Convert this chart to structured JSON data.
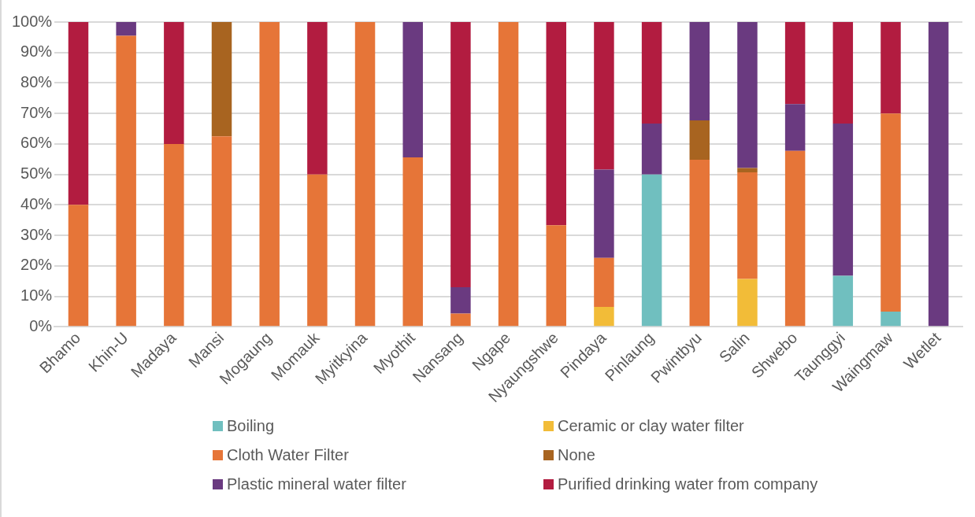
{
  "chart_data": {
    "type": "bar",
    "stacked": true,
    "grid": "y",
    "legend": "bottom",
    "categories": [
      "Bhamo",
      "Khin-U",
      "Madaya",
      "Mansi",
      "Mogaung",
      "Momauk",
      "Myitkyina",
      "Myothit",
      "Nansang",
      "Ngape",
      "Nyaungshwe",
      "Pindaya",
      "Pinlaung",
      "Pwintbyu",
      "Salin",
      "Shwebo",
      "Taunggyi",
      "Waingmaw",
      "Wetlet"
    ],
    "ylim": [
      0,
      100
    ],
    "yticks": [
      {
        "value": 0,
        "label": "0%"
      },
      {
        "value": 10,
        "label": "10%"
      },
      {
        "value": 20,
        "label": "20%"
      },
      {
        "value": 30,
        "label": "30%"
      },
      {
        "value": 40,
        "label": "40%"
      },
      {
        "value": 50,
        "label": "50%"
      },
      {
        "value": 60,
        "label": "60%"
      },
      {
        "value": 70,
        "label": "70%"
      },
      {
        "value": 80,
        "label": "80%"
      },
      {
        "value": 90,
        "label": "90%"
      },
      {
        "value": 100,
        "label": "100%"
      }
    ],
    "series": [
      {
        "name": "Boiling",
        "color": "#70bfbf",
        "values": [
          0,
          0,
          0,
          0,
          0,
          0,
          0,
          0,
          0,
          0,
          0,
          0,
          50,
          0,
          0,
          0,
          16.7,
          5,
          0
        ]
      },
      {
        "name": "Ceramic or clay water filter",
        "color": "#f2bc38",
        "values": [
          0,
          0,
          0,
          0,
          0,
          0,
          0,
          0,
          0,
          0,
          0,
          6.5,
          0,
          0,
          15.7,
          0,
          0,
          0,
          0
        ]
      },
      {
        "name": "Cloth Water Filter",
        "color": "#e67538",
        "values": [
          40,
          95.5,
          60,
          62.5,
          100,
          50,
          100,
          55.6,
          4.3,
          100,
          33.3,
          16.1,
          0,
          54.8,
          35,
          57.7,
          0,
          65,
          0
        ]
      },
      {
        "name": "None",
        "color": "#a86420",
        "values": [
          0,
          0,
          0,
          37.5,
          0,
          0,
          0,
          0,
          0,
          0,
          0,
          0,
          0,
          12.9,
          1.4,
          0,
          0,
          0,
          0
        ]
      },
      {
        "name": "Plastic mineral water filter",
        "color": "#6a3a80",
        "values": [
          0,
          4.5,
          0,
          0,
          0,
          0,
          0,
          44.4,
          8.7,
          0,
          0,
          29,
          16.7,
          32.3,
          47.9,
          15.4,
          50,
          0,
          100
        ]
      },
      {
        "name": "Purified drinking water from company",
        "color": "#b21c40",
        "values": [
          60,
          0,
          40,
          0,
          0,
          50,
          0,
          0,
          87,
          0,
          66.7,
          48.4,
          33.3,
          0,
          0,
          26.9,
          33.3,
          30,
          0
        ]
      }
    ]
  }
}
